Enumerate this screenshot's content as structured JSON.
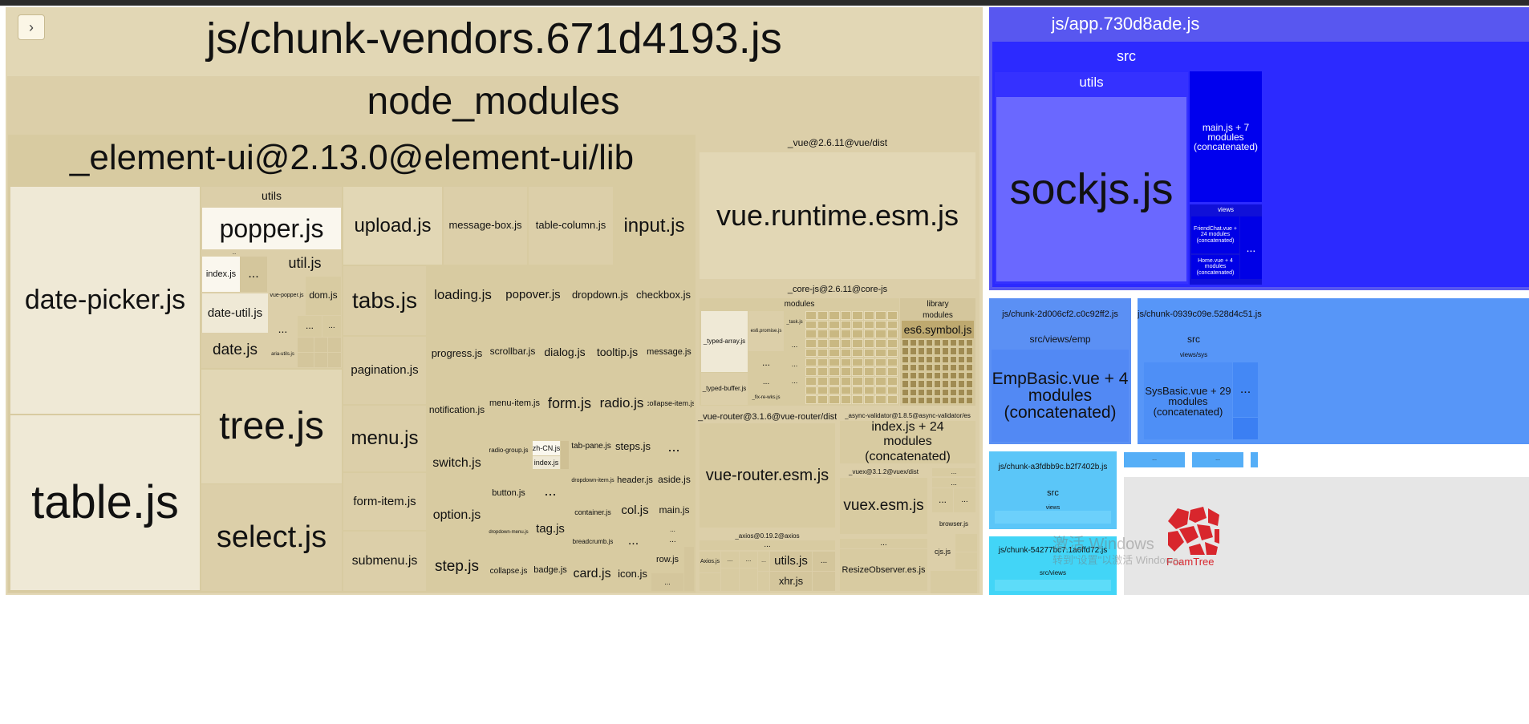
{
  "topbar": "",
  "toggle": {
    "symbol": "›"
  },
  "chunks": {
    "vendors": {
      "title": "js/chunk-vendors.671d4193.js",
      "node_modules": "node_modules",
      "element": {
        "title": "_element-ui@2.13.0@element-ui/lib",
        "date_picker": "date-picker.js",
        "table": "table.js",
        "utils": "utils",
        "popper": "popper.js",
        "dots": "...",
        "index": "index.js",
        "util": "util.js",
        "vue_popper": "vue-popper.js",
        "dom": "dom.js",
        "date_util": "date-util.js",
        "date": "date.js",
        "aria_utils": "aria-utils.js",
        "tree": "tree.js",
        "select": "select.js",
        "upload": "upload.js",
        "message_box": "message-box.js",
        "table_column": "table-column.js",
        "input": "input.js",
        "tabs": "tabs.js",
        "loading": "loading.js",
        "popover": "popover.js",
        "dropdown": "dropdown.js",
        "checkbox": "checkbox.js",
        "pagination": "pagination.js",
        "progress": "progress.js",
        "scrollbar": "scrollbar.js",
        "dialog": "dialog.js",
        "tooltip": "tooltip.js",
        "message": "message.js",
        "notification": "notification.js",
        "menu_item": "menu-item.js",
        "form": "form.js",
        "radio": "radio.js",
        "collapse_item": "collapse-item.js",
        "menu": "menu.js",
        "switch": "switch.js",
        "radio_group": "radio-group.js",
        "zh_cn": "zh-CN.js",
        "index2": "index.js",
        "tab_pane": "tab-pane.js",
        "steps": "steps.js",
        "form_item": "form-item.js",
        "button": "button.js",
        "dropdown_item": "dropdown-item.js",
        "header": "header.js",
        "aside": "aside.js",
        "option": "option.js",
        "tag": "tag.js",
        "container": "container.js",
        "col": "col.js",
        "main": "main.js",
        "dropdown_menu": "dropdown-menu.js",
        "breadcrumb": "breadcrumb.js",
        "submenu": "submenu.js",
        "step": "step.js",
        "collapse": "collapse.js",
        "badge": "badge.js",
        "card": "card.js",
        "icon": "icon.js",
        "row": "row.js"
      },
      "vue": {
        "title": "_vue@2.6.11@vue/dist",
        "runtime": "vue.runtime.esm.js"
      },
      "corejs": {
        "title": "_core-js@2.6.11@core-js",
        "modules": "modules",
        "typed_array": "_typed-array.js",
        "typed_buffer": "_typed-buffer.js",
        "es6_promise": "es6.promise.js",
        "task": "_task.js",
        "fix_re_wks": "_fix-re-wks.js",
        "library": "library",
        "library_modules": "modules",
        "es6_symbol": "es6.symbol.js"
      },
      "router": {
        "title": "_vue-router@3.1.6@vue-router/dist",
        "file": "vue-router.esm.js"
      },
      "async_validator": {
        "title": "_async-validator@1.8.5@async-validator/es",
        "file": "index.js + 24 modules (concatenated)"
      },
      "vuex": {
        "title": "_vuex@3.1.2@vuex/dist",
        "file": "vuex.esm.js"
      },
      "browser": "browser.js",
      "cjs": "cjs.js",
      "resize_observer": "ResizeObserver.es.js",
      "axios": {
        "title": "_axios@0.19.2@axios",
        "axios_js": "Axios.js",
        "utils": "utils.js",
        "xhr": "xhr.js"
      }
    },
    "app": {
      "title": "js/app.730d8ade.js",
      "src": "src",
      "utils": "utils",
      "sockjs": "sockjs.js",
      "main": "main.js + 7 modules (concatenated)",
      "views": "views",
      "friend_chat": "FriendChat.vue + 24 modules (concatenated)",
      "home": "Home.vue + 4 modules (concatenated)"
    },
    "emp": {
      "title": "js/chunk-2d006cf2.c0c92ff2.js",
      "path": "src/views/emp",
      "file": "EmpBasic.vue + 4 modules (concatenated)"
    },
    "sys": {
      "title": "js/chunk-0939c09e.528d4c51.js",
      "src": "src",
      "path": "views/sys",
      "file": "SysBasic.vue + 29 modules (concatenated)"
    },
    "a3fd": {
      "title": "js/chunk-a3fdbb9c.b2f7402b.js",
      "src": "src",
      "views": "views"
    },
    "c542": {
      "title": "js/chunk-54277bc7.1a6ffd72.js",
      "path": "src/views"
    }
  },
  "watermark": {
    "line1": "激活 Windows",
    "line2": "转到\"设置\"以激活 Windows。"
  },
  "logo": {
    "text": "FoamTree"
  },
  "colors": {
    "vendor": "#e2d7b5",
    "app": "#5857f0",
    "app_dark": "#0000ee",
    "emp": "#5b90f4",
    "sys": "#5796f8",
    "cyan1": "#5bc6f8",
    "cyan2": "#42d5f7"
  }
}
